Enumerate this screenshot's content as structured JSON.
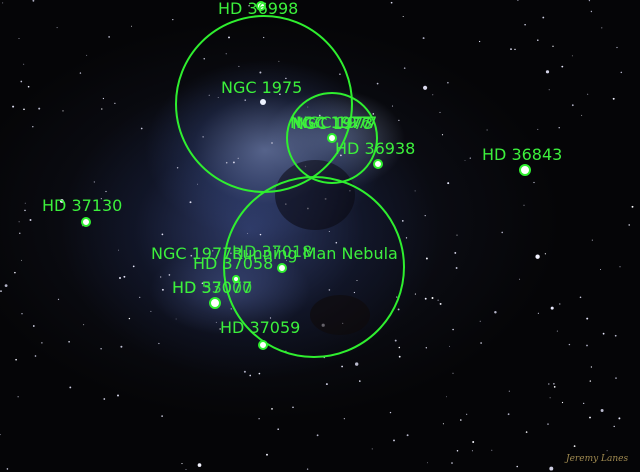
{
  "image": {
    "subject": "Orion nebula region annotated star chart",
    "annotation_color": "#33ee33",
    "credit": "Jeremy Lanes"
  },
  "labels": {
    "hd36998": "HD 36998",
    "ngc1975": "NGC 1975",
    "ngc1977_a": "NGC 1977",
    "ngc1973": "NGC 1973",
    "ngc1977_b": "NGC 1977",
    "ngc1976": "NGC 1976",
    "hd36938": "HD 36938",
    "hd36843": "HD 36843",
    "hd37130": "HD 37130",
    "ngc1977_c": "NGC 1977",
    "running_man": "Running Man Nebula",
    "hd37058": "HD 37058",
    "hd37018": "HD 37018",
    "hd37077": "HD 37077",
    "hd53000": "HD 53000",
    "hd37059": "HD 37059"
  }
}
